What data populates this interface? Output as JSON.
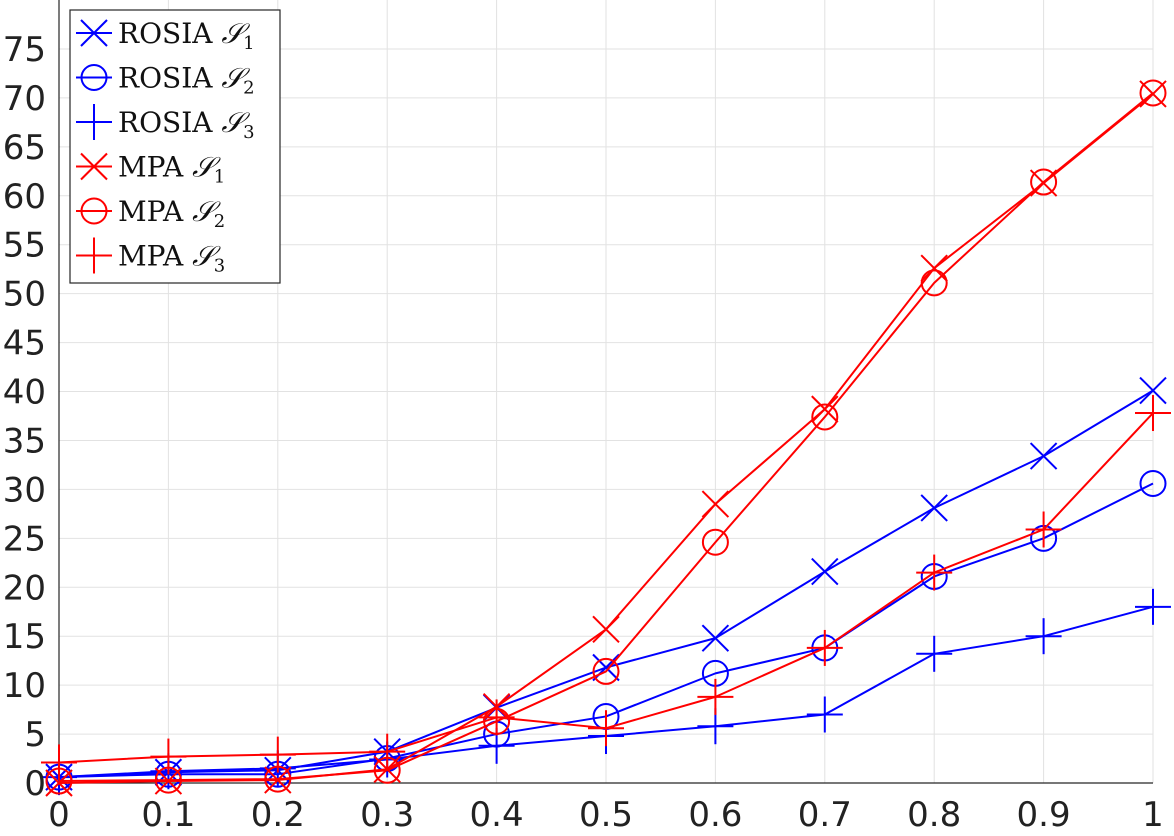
{
  "chart_data": {
    "type": "line",
    "title": "",
    "xlabel": "",
    "ylabel": "",
    "x": [
      0,
      0.1,
      0.2,
      0.3,
      0.4,
      0.5,
      0.6,
      0.7,
      0.8,
      0.9,
      1
    ],
    "xlim": [
      0,
      1
    ],
    "ylim": [
      0,
      80
    ],
    "x_ticks": [
      0,
      0.1,
      0.2,
      0.3,
      0.4,
      0.5,
      0.6,
      0.7,
      0.8,
      0.9,
      1
    ],
    "x_tick_labels": [
      "0",
      "0.1",
      "0.2",
      "0.3",
      "0.4",
      "0.5",
      "0.6",
      "0.7",
      "0.8",
      "0.9",
      "1"
    ],
    "y_ticks": [
      0,
      5,
      10,
      15,
      20,
      25,
      30,
      35,
      40,
      45,
      50,
      55,
      60,
      65,
      70,
      75
    ],
    "y_tick_labels": [
      "0",
      "5",
      "10",
      "15",
      "20",
      "25",
      "30",
      "35",
      "40",
      "45",
      "50",
      "55",
      "60",
      "65",
      "70",
      "75"
    ],
    "grid": true,
    "legend_position": "top-left",
    "series": [
      {
        "name": "ROSIA",
        "subscript": "1",
        "color": "#0000ff",
        "marker": "x",
        "values": [
          0.6,
          1.1,
          1.3,
          3.2,
          7.7,
          11.8,
          14.8,
          21.6,
          28.1,
          33.4,
          40.1
        ]
      },
      {
        "name": "ROSIA",
        "subscript": "2",
        "color": "#0000ff",
        "marker": "o",
        "values": [
          0.6,
          0.9,
          0.9,
          2.5,
          5.0,
          6.8,
          11.2,
          13.8,
          21.1,
          25.0,
          30.6
        ]
      },
      {
        "name": "ROSIA",
        "subscript": "3",
        "color": "#0000ff",
        "marker": "+",
        "values": [
          0.6,
          1.2,
          1.5,
          2.4,
          3.8,
          4.8,
          5.8,
          7.0,
          13.2,
          15.0,
          18.0
        ]
      },
      {
        "name": "MPA",
        "subscript": "1",
        "color": "#ff0000",
        "marker": "x",
        "values": [
          0.0,
          0.2,
          0.3,
          1.4,
          7.8,
          15.7,
          28.5,
          38.2,
          52.6,
          61.3,
          70.4
        ]
      },
      {
        "name": "MPA",
        "subscript": "2",
        "color": "#ff0000",
        "marker": "o",
        "values": [
          0.2,
          0.3,
          0.4,
          1.3,
          6.3,
          11.4,
          24.6,
          37.4,
          51.1,
          61.4,
          70.5
        ]
      },
      {
        "name": "MPA",
        "subscript": "3",
        "color": "#ff0000",
        "marker": "+",
        "values": [
          2.1,
          2.7,
          2.9,
          3.2,
          6.7,
          5.6,
          8.8,
          13.8,
          21.5,
          25.9,
          37.8
        ]
      }
    ]
  }
}
